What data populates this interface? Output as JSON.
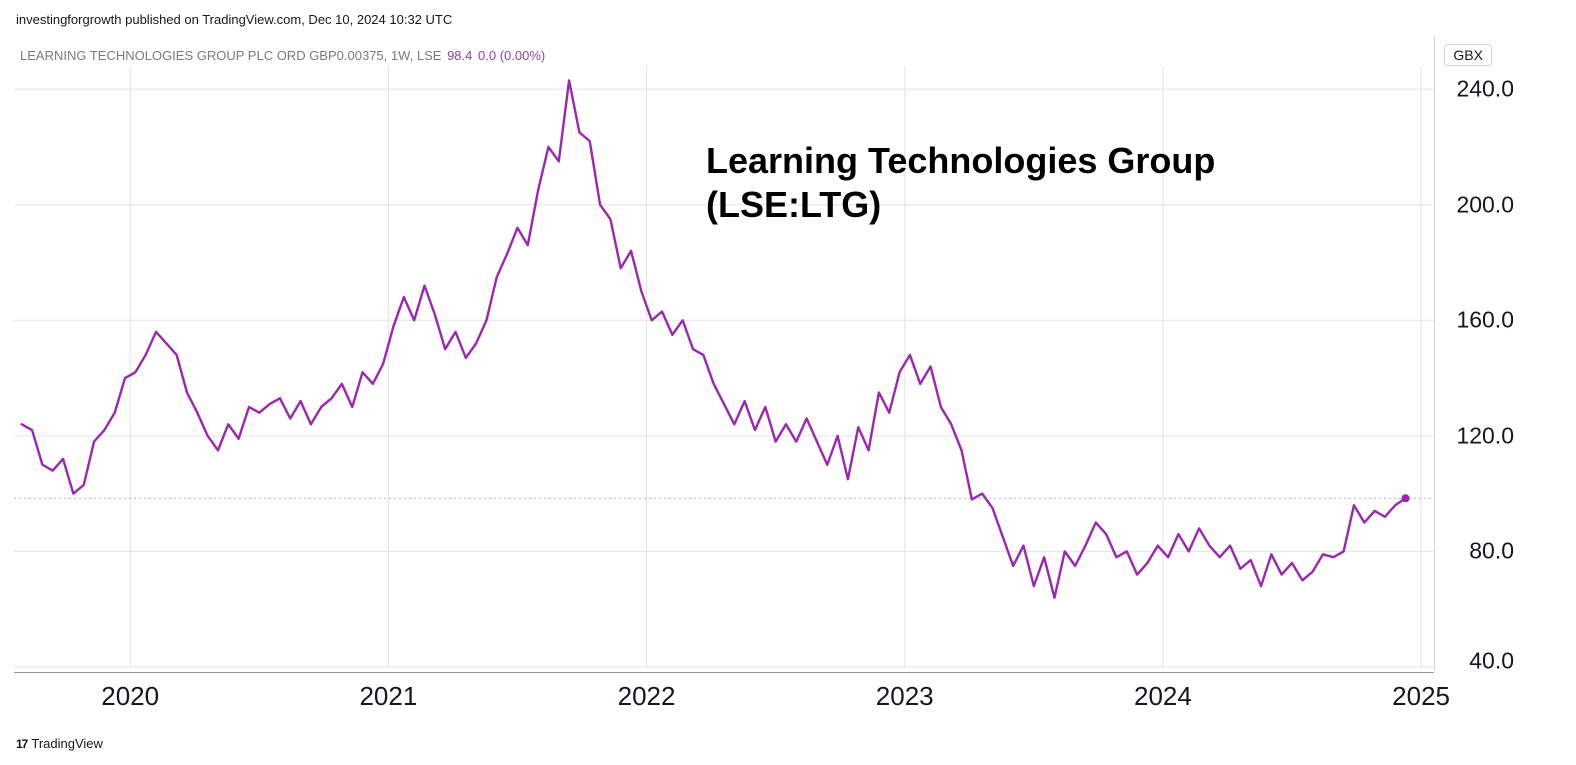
{
  "attribution": "investingforgrowth published on TradingView.com, Dec 10, 2024 10:32 UTC",
  "header": {
    "symbol": "LEARNING TECHNOLOGIES GROUP PLC ORD GBP0.00375, 1W, LSE",
    "price": "98.4",
    "change": "0.0",
    "pct": "(0.00%)"
  },
  "overlay": {
    "title": "Learning Technologies Group",
    "sub": "(LSE:LTG)"
  },
  "footer": "TradingView",
  "y_unit": "GBX",
  "chart": {
    "type": "line",
    "line_color": "#9b27b0",
    "line_width": 2.4,
    "background_color": "#ffffff",
    "grid_color": "#e0e3eb",
    "last_marker_color": "#9b27b0",
    "current_line_color": "#c8a0dd",
    "x_domain_start": 2019.55,
    "x_domain_end": 2025.05,
    "y_domain_min": 40.0,
    "y_domain_max": 248.0,
    "y_ticks": [
      40.0,
      80.0,
      120.0,
      160.0,
      200.0,
      240.0
    ],
    "x_ticks": [
      2020,
      2021,
      2022,
      2023,
      2024,
      2025
    ],
    "current_value": 98.4,
    "series": [
      [
        2019.58,
        124
      ],
      [
        2019.62,
        122
      ],
      [
        2019.66,
        110
      ],
      [
        2019.7,
        108
      ],
      [
        2019.74,
        112
      ],
      [
        2019.78,
        100
      ],
      [
        2019.82,
        103
      ],
      [
        2019.86,
        118
      ],
      [
        2019.9,
        122
      ],
      [
        2019.94,
        128
      ],
      [
        2019.98,
        140
      ],
      [
        2020.02,
        142
      ],
      [
        2020.06,
        148
      ],
      [
        2020.1,
        156
      ],
      [
        2020.14,
        152
      ],
      [
        2020.18,
        148
      ],
      [
        2020.22,
        135
      ],
      [
        2020.26,
        128
      ],
      [
        2020.3,
        120
      ],
      [
        2020.34,
        115
      ],
      [
        2020.38,
        124
      ],
      [
        2020.42,
        119
      ],
      [
        2020.46,
        130
      ],
      [
        2020.5,
        128
      ],
      [
        2020.54,
        131
      ],
      [
        2020.58,
        133
      ],
      [
        2020.62,
        126
      ],
      [
        2020.66,
        132
      ],
      [
        2020.7,
        124
      ],
      [
        2020.74,
        130
      ],
      [
        2020.78,
        133
      ],
      [
        2020.82,
        138
      ],
      [
        2020.86,
        130
      ],
      [
        2020.9,
        142
      ],
      [
        2020.94,
        138
      ],
      [
        2020.98,
        145
      ],
      [
        2021.02,
        158
      ],
      [
        2021.06,
        168
      ],
      [
        2021.1,
        160
      ],
      [
        2021.14,
        172
      ],
      [
        2021.18,
        162
      ],
      [
        2021.22,
        150
      ],
      [
        2021.26,
        156
      ],
      [
        2021.3,
        147
      ],
      [
        2021.34,
        152
      ],
      [
        2021.38,
        160
      ],
      [
        2021.42,
        175
      ],
      [
        2021.46,
        183
      ],
      [
        2021.5,
        192
      ],
      [
        2021.54,
        186
      ],
      [
        2021.58,
        205
      ],
      [
        2021.62,
        220
      ],
      [
        2021.66,
        215
      ],
      [
        2021.7,
        243
      ],
      [
        2021.74,
        225
      ],
      [
        2021.78,
        222
      ],
      [
        2021.82,
        200
      ],
      [
        2021.86,
        195
      ],
      [
        2021.9,
        178
      ],
      [
        2021.94,
        184
      ],
      [
        2021.98,
        170
      ],
      [
        2022.02,
        160
      ],
      [
        2022.06,
        163
      ],
      [
        2022.1,
        155
      ],
      [
        2022.14,
        160
      ],
      [
        2022.18,
        150
      ],
      [
        2022.22,
        148
      ],
      [
        2022.26,
        138
      ],
      [
        2022.3,
        131
      ],
      [
        2022.34,
        124
      ],
      [
        2022.38,
        132
      ],
      [
        2022.42,
        122
      ],
      [
        2022.46,
        130
      ],
      [
        2022.5,
        118
      ],
      [
        2022.54,
        124
      ],
      [
        2022.58,
        118
      ],
      [
        2022.62,
        126
      ],
      [
        2022.66,
        118
      ],
      [
        2022.7,
        110
      ],
      [
        2022.74,
        120
      ],
      [
        2022.78,
        105
      ],
      [
        2022.82,
        123
      ],
      [
        2022.86,
        115
      ],
      [
        2022.9,
        135
      ],
      [
        2022.94,
        128
      ],
      [
        2022.98,
        142
      ],
      [
        2023.02,
        148
      ],
      [
        2023.06,
        138
      ],
      [
        2023.1,
        144
      ],
      [
        2023.14,
        130
      ],
      [
        2023.18,
        124
      ],
      [
        2023.22,
        115
      ],
      [
        2023.26,
        98
      ],
      [
        2023.3,
        100
      ],
      [
        2023.34,
        95
      ],
      [
        2023.38,
        85
      ],
      [
        2023.42,
        75
      ],
      [
        2023.46,
        82
      ],
      [
        2023.5,
        68
      ],
      [
        2023.54,
        78
      ],
      [
        2023.58,
        64
      ],
      [
        2023.62,
        80
      ],
      [
        2023.66,
        75
      ],
      [
        2023.7,
        82
      ],
      [
        2023.74,
        90
      ],
      [
        2023.78,
        86
      ],
      [
        2023.82,
        78
      ],
      [
        2023.86,
        80
      ],
      [
        2023.9,
        72
      ],
      [
        2023.94,
        76
      ],
      [
        2023.98,
        82
      ],
      [
        2024.02,
        78
      ],
      [
        2024.06,
        86
      ],
      [
        2024.1,
        80
      ],
      [
        2024.14,
        88
      ],
      [
        2024.18,
        82
      ],
      [
        2024.22,
        78
      ],
      [
        2024.26,
        82
      ],
      [
        2024.3,
        74
      ],
      [
        2024.34,
        77
      ],
      [
        2024.38,
        68
      ],
      [
        2024.42,
        79
      ],
      [
        2024.46,
        72
      ],
      [
        2024.5,
        76
      ],
      [
        2024.54,
        70
      ],
      [
        2024.58,
        73
      ],
      [
        2024.62,
        79
      ],
      [
        2024.66,
        78
      ],
      [
        2024.7,
        80
      ],
      [
        2024.74,
        96
      ],
      [
        2024.78,
        90
      ],
      [
        2024.82,
        94
      ],
      [
        2024.86,
        92
      ],
      [
        2024.9,
        96
      ],
      [
        2024.94,
        98.4
      ]
    ]
  }
}
